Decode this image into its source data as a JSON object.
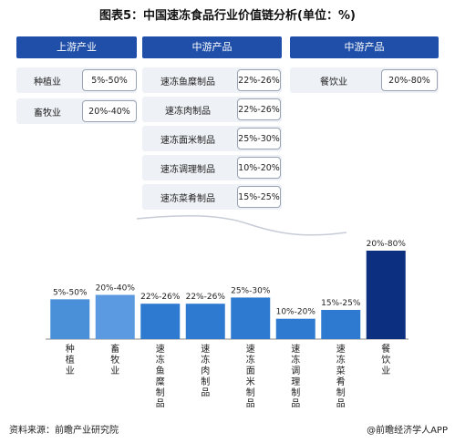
{
  "title": "图表5：中国速冻食品行业价值链分析(单位：%)",
  "upstream": {
    "header": "上游产业",
    "items": [
      {
        "name": "种植业",
        "range": "5%-50%"
      },
      {
        "name": "畜牧业",
        "range": "20%-40%"
      }
    ]
  },
  "midstream": {
    "header": "中游产品",
    "items": [
      {
        "name": "速冻鱼糜制品",
        "range": "22%-26%"
      },
      {
        "name": "速冻肉制品",
        "range": "22%-26%"
      },
      {
        "name": "速冻面米制品",
        "range": "25%-30%"
      },
      {
        "name": "速冻调理制品",
        "range": "10%-20%"
      },
      {
        "name": "速冻菜肴制品",
        "range": "15%-25%"
      }
    ]
  },
  "downstream": {
    "header": "中游产品",
    "items": [
      {
        "name": "餐饮业",
        "range": "20%-80%"
      }
    ]
  },
  "chart_data": {
    "type": "bar",
    "categories": [
      "种植业",
      "畜牧业",
      "速冻鱼糜制品",
      "速冻肉制品",
      "速冻面米制品",
      "速冻调理制品",
      "速冻菜肴制品",
      "餐饮业"
    ],
    "value_labels": [
      "5%-50%",
      "20%-40%",
      "22%-26%",
      "22%-26%",
      "25%-30%",
      "10%-20%",
      "15%-25%",
      "20%-80%"
    ],
    "values": [
      45,
      50,
      40,
      40,
      47,
      23,
      33,
      100
    ],
    "colors": [
      "#4a90d9",
      "#5b9ae0",
      "#2f7ad1",
      "#2f7ad1",
      "#2f7ad1",
      "#2f7ad1",
      "#2f7ad1",
      "#0d2f80"
    ],
    "ylim": [
      0,
      100
    ]
  },
  "source": "资料来源：前瞻产业研究院",
  "brand": "@前瞻经济学人APP",
  "watermark": "前瞻产业研究院"
}
